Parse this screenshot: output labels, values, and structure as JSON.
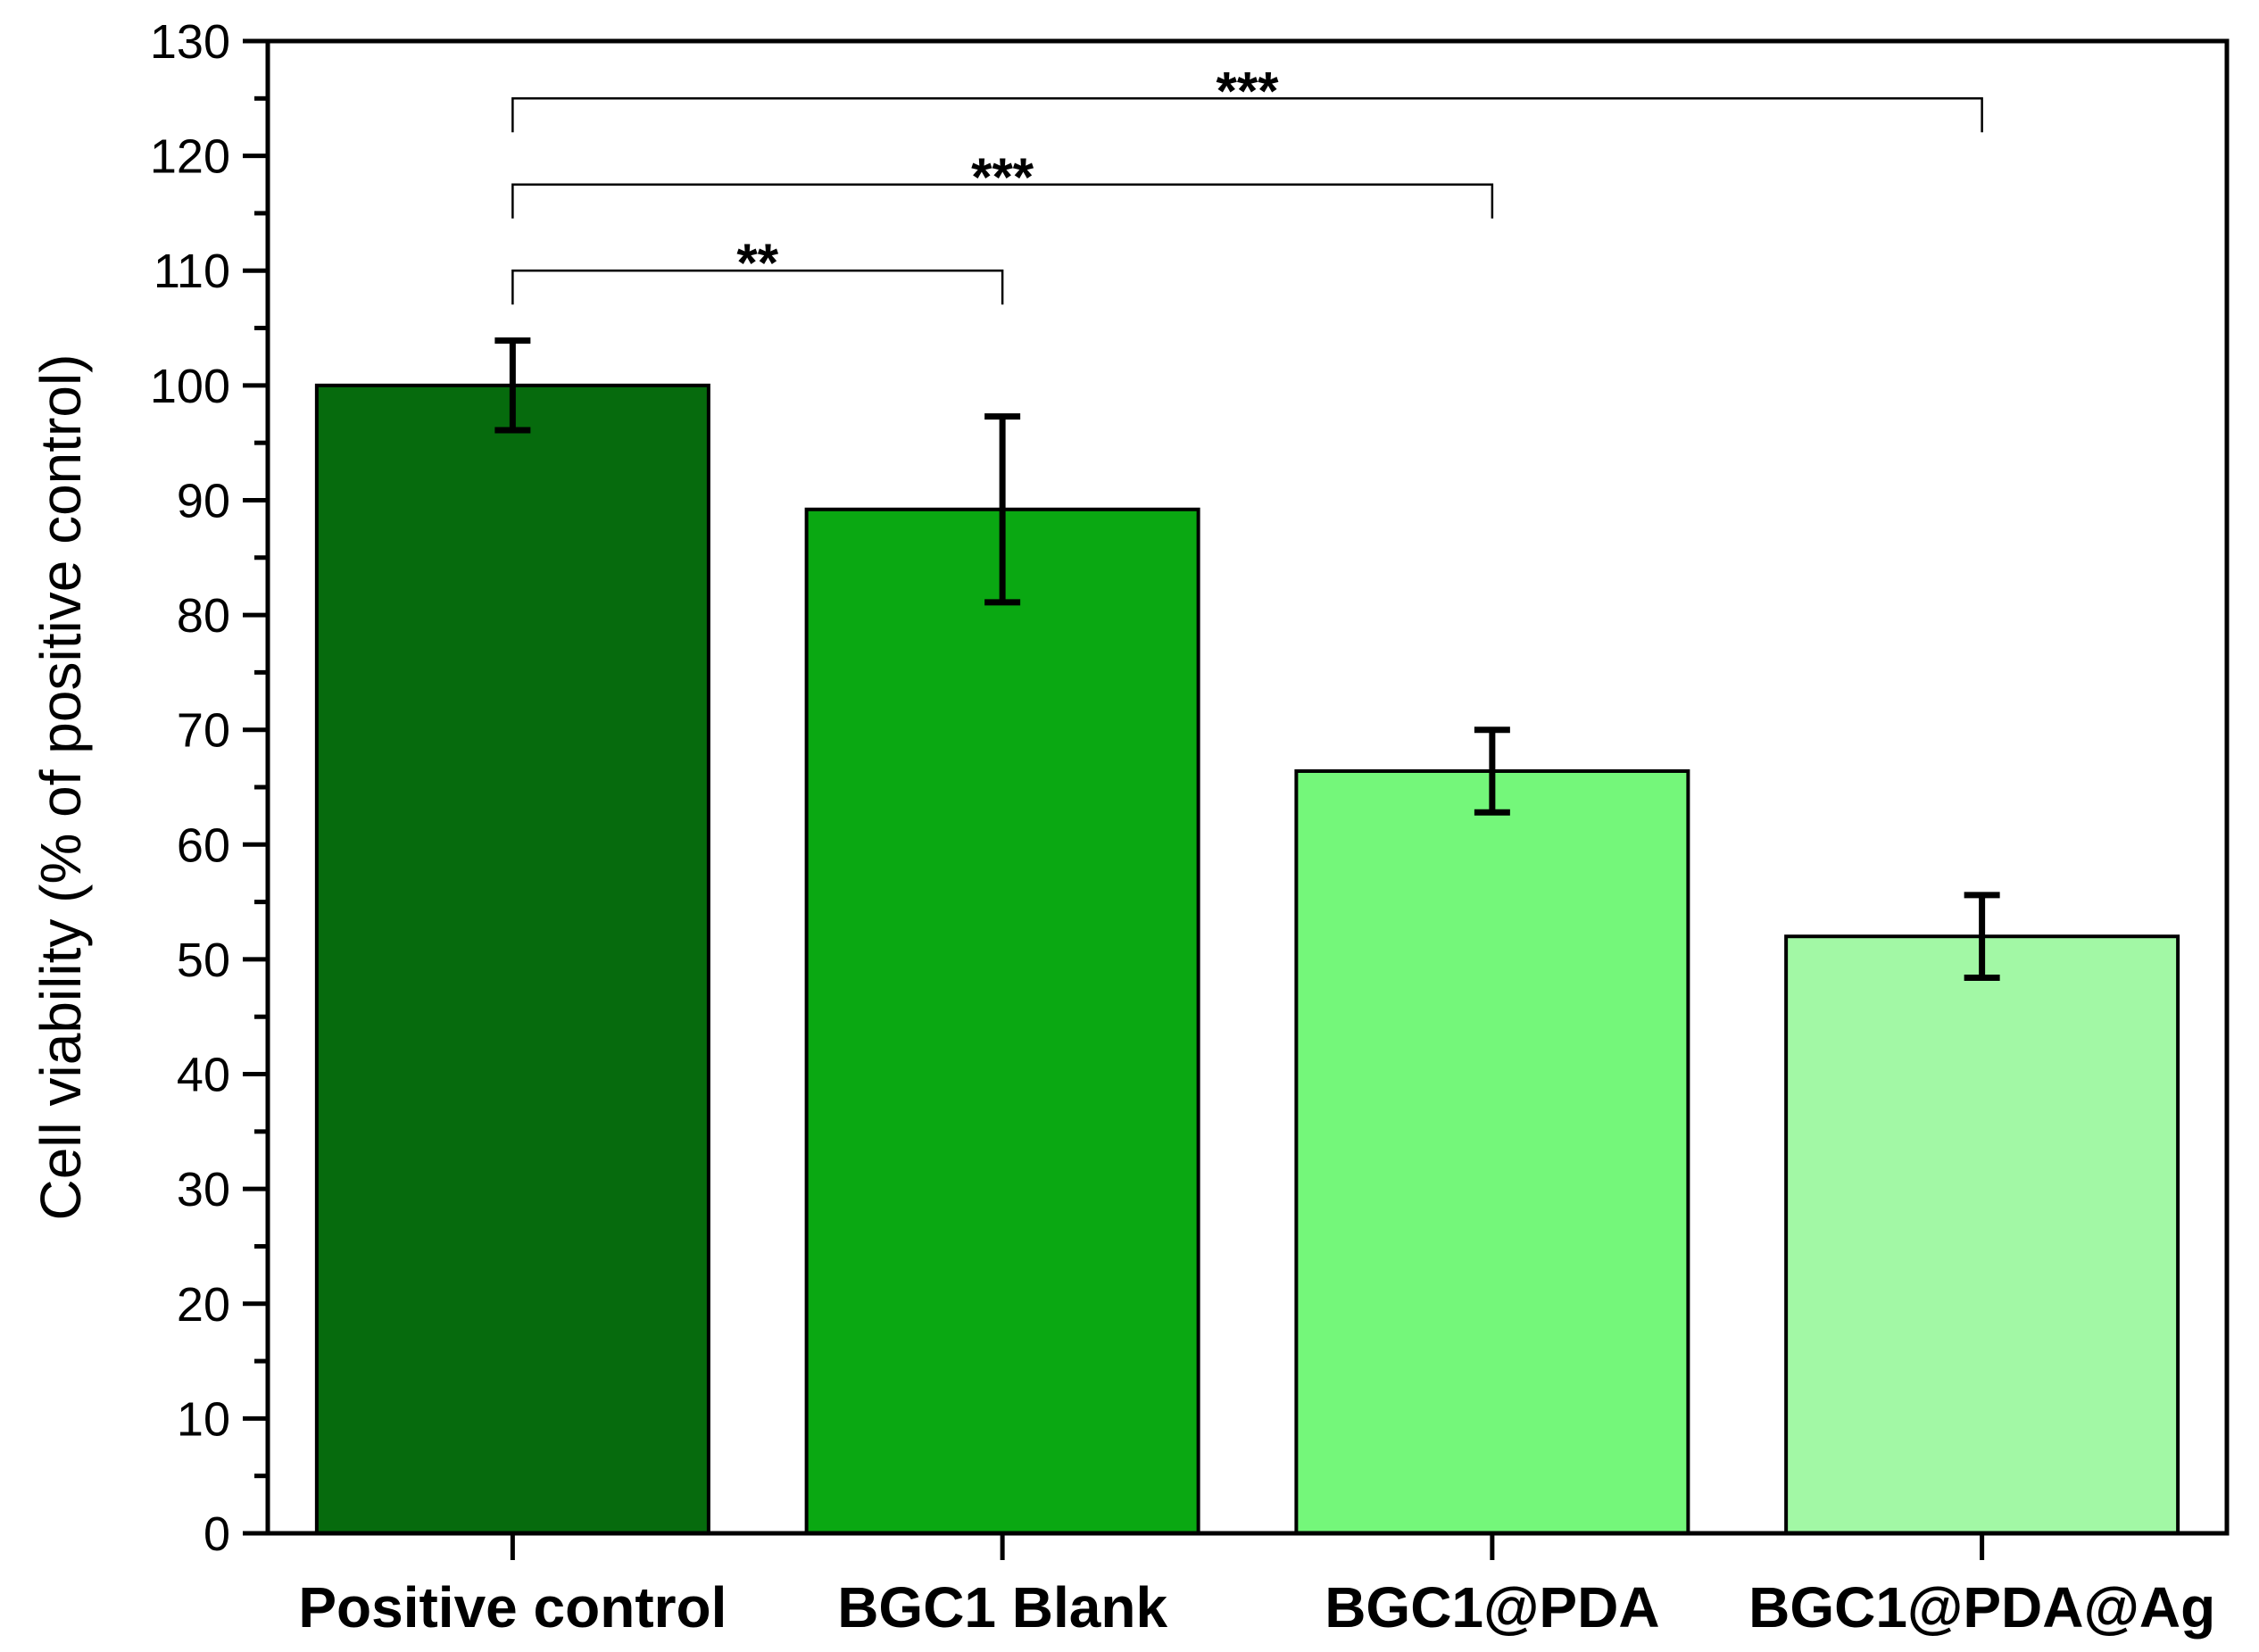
{
  "chart_data": {
    "type": "bar",
    "title": "",
    "xlabel": "",
    "ylabel": "Cell viability (% of positive control)",
    "ylim": [
      0,
      130
    ],
    "y_major_ticks": [
      0,
      10,
      20,
      30,
      40,
      50,
      60,
      70,
      80,
      90,
      100,
      110,
      120,
      130
    ],
    "y_minor_step": 5,
    "grid": false,
    "categories": [
      "Positive control",
      "BGC1 Blank",
      "BGC1@PDA",
      "BGC1@PDA@Ag"
    ],
    "values": [
      100,
      89.2,
      66.4,
      52.0
    ],
    "error": [
      3.9,
      8.1,
      3.6,
      3.6
    ],
    "colors": [
      "#066b0d",
      "#0aa812",
      "#74f77a",
      "#a2f8a5"
    ],
    "significance": [
      {
        "from": "Positive control",
        "to": "BGC1 Blank",
        "label": "**",
        "level": 110
      },
      {
        "from": "Positive control",
        "to": "BGC1@PDA",
        "label": "***",
        "level": 117.5
      },
      {
        "from": "Positive control",
        "to": "BGC1@PDA@Ag",
        "label": "***",
        "level": 125
      }
    ]
  }
}
